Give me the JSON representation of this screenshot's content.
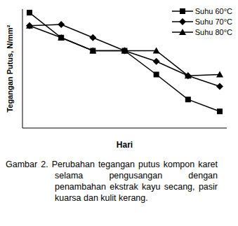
{
  "chart_data": {
    "type": "line",
    "title": "Gambar 2. Perubahan tegangan putus kompon karet selama pengusangan dengan penambahan ekstrak kayu secang, pasir kuarsa dan kulit kerang.",
    "x_label": "Hari",
    "y_label": "Tegangan Putus, N/mm²",
    "categories": [
      null,
      null,
      null,
      null,
      null,
      null,
      null
    ],
    "ylim": [
      0,
      100
    ],
    "tick_labels": false,
    "legend": "upper right",
    "series": [
      {
        "name": "Suhu 60°C",
        "color": "#000000",
        "marker": "square",
        "values": [
          97,
          76,
          65,
          65,
          45,
          24,
          14
        ]
      },
      {
        "name": "Suhu 70°C",
        "color": "#000000",
        "marker": "diamond",
        "values": [
          86,
          87,
          76,
          65,
          56,
          44,
          35
        ]
      },
      {
        "name": "Suhu 80°C",
        "color": "#000000",
        "marker": "triangle",
        "values": [
          86,
          76,
          65,
          65,
          65,
          44,
          45
        ]
      }
    ]
  }
}
